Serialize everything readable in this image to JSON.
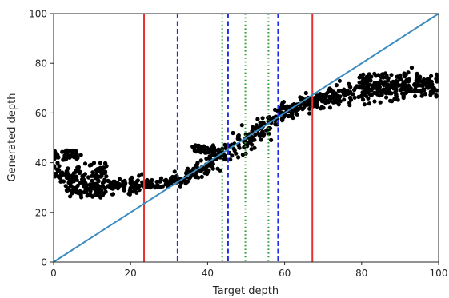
{
  "chart_data": {
    "type": "scatter",
    "xlabel": "Target depth",
    "ylabel": "Generated depth",
    "xlim": [
      0,
      100
    ],
    "ylim": [
      0,
      100
    ],
    "xticks": [
      0,
      20,
      40,
      60,
      80,
      100
    ],
    "yticks": [
      0,
      20,
      40,
      60,
      80,
      100
    ],
    "grid": false,
    "colors": {
      "points": "#000000",
      "identity_line": "#3b8bc2",
      "outer_bounds": "#e8312d",
      "middle_bounds": "#1f2ce6",
      "inner_bounds": "#2e9e2e"
    },
    "identity_line": {
      "x": [
        0,
        100
      ],
      "y": [
        0,
        100
      ]
    },
    "vertical_lines": [
      {
        "group": "outer_bounds",
        "style": "solid",
        "x": [
          23.5,
          67.2
        ]
      },
      {
        "group": "middle_bounds",
        "style": "dashed",
        "x": [
          32.2,
          45.3,
          58.3
        ]
      },
      {
        "group": "inner_bounds",
        "style": "dotted",
        "x": [
          43.8,
          49.8,
          55.8
        ]
      }
    ],
    "scatter_trend": {
      "x": [
        0,
        5,
        10,
        15,
        20,
        25,
        30,
        33,
        35,
        38,
        40,
        42,
        45,
        48,
        50,
        52,
        55,
        58,
        60,
        62,
        65,
        68,
        70,
        75,
        80,
        85,
        90,
        95,
        100
      ],
      "y": [
        38,
        33,
        31,
        31,
        31,
        31.5,
        32,
        33,
        35,
        37.5,
        39,
        41,
        44,
        47,
        49.5,
        51.5,
        54.5,
        58,
        60.5,
        62,
        63.5,
        64.5,
        65.5,
        67,
        68.5,
        69.5,
        70,
        70.5,
        71
      ]
    },
    "scatter_noise": [
      2.4,
      2.2,
      2.0,
      1.8,
      1.7,
      1.4,
      1.2,
      1.6,
      2.2,
      2.6,
      2.8,
      2.8,
      2.8,
      2.8,
      2.8,
      2.8,
      2.8,
      2.6,
      2.4,
      2.0,
      2.0,
      2.4,
      2.8,
      3.0,
      3.0,
      3.0,
      3.0,
      2.8,
      2.6
    ],
    "scatter_clusters": [
      {
        "x": [
          0,
          8
        ],
        "y": [
          41,
          45
        ]
      },
      {
        "x": [
          3,
          13
        ],
        "y": [
          26,
          31
        ]
      },
      {
        "x": [
          5,
          14
        ],
        "y": [
          34,
          40
        ]
      },
      {
        "x": [
          36,
          42
        ],
        "y": [
          44,
          47
        ]
      },
      {
        "x": [
          79,
          95
        ],
        "y": [
          72,
          76
        ]
      }
    ]
  }
}
